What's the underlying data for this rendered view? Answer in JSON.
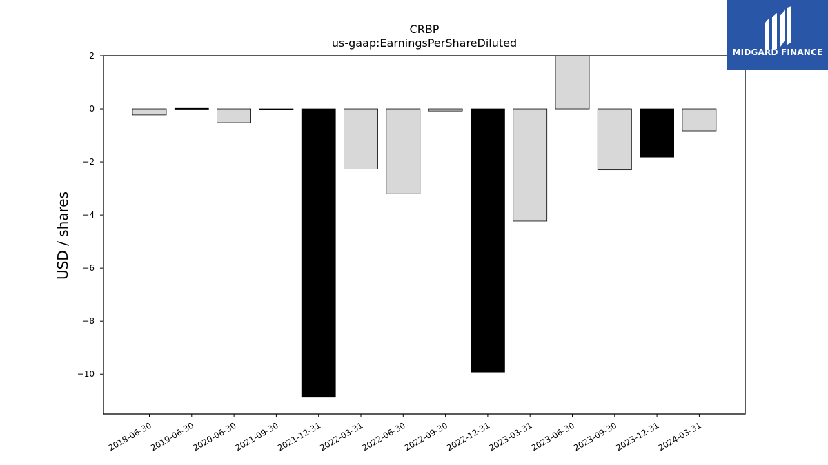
{
  "chart_data": {
    "type": "bar",
    "title": "CRBP",
    "subtitle": "us-gaap:EarningsPerShareDiluted",
    "ylabel": "USD / shares",
    "xlabel": "",
    "ylim": [
      -11.5,
      2
    ],
    "yticks": [
      2,
      0,
      -2,
      -4,
      -6,
      -8,
      -10
    ],
    "grid": false,
    "categories": [
      "2018-06-30",
      "2019-06-30",
      "2020-06-30",
      "2021-09-30",
      "2021-12-31",
      "2022-03-31",
      "2022-06-30",
      "2022-09-30",
      "2022-12-31",
      "2023-03-31",
      "2023-06-30",
      "2023-09-30",
      "2023-12-31",
      "2024-03-31"
    ],
    "values": [
      -0.23,
      0.02,
      -0.52,
      -0.02,
      -10.87,
      -2.27,
      -3.2,
      -0.08,
      -9.92,
      -4.23,
      2.0,
      -2.3,
      -1.82,
      -0.83
    ],
    "colors": [
      "#d8d8d8",
      "#000000",
      "#d8d8d8",
      "#000000",
      "#000000",
      "#d8d8d8",
      "#d8d8d8",
      "#d8d8d8",
      "#000000",
      "#d8d8d8",
      "#d8d8d8",
      "#d8d8d8",
      "#000000",
      "#d8d8d8"
    ]
  },
  "logo": {
    "text": "MIDGARD FINANCE",
    "background": "#2a56a8"
  }
}
